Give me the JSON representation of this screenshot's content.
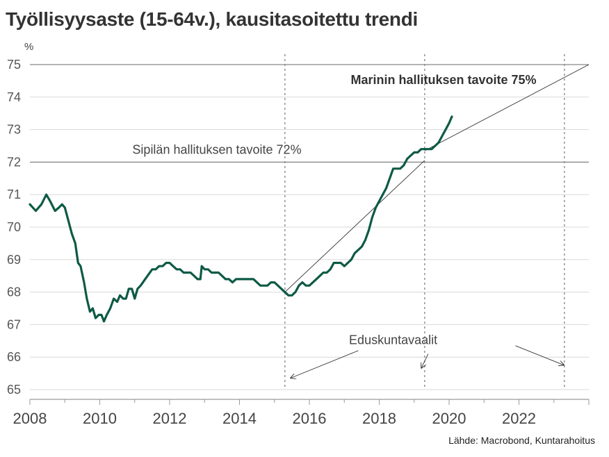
{
  "chart_data": {
    "type": "line",
    "title": "Työllisyysaste (15-64v.), kausitasoitettu trendi",
    "ylabel": "%",
    "xlabel": "",
    "xlim": [
      2008,
      2024
    ],
    "ylim": [
      65,
      75
    ],
    "x_ticks": [
      "2008",
      "2010",
      "2012",
      "2014",
      "2016",
      "2018",
      "2020",
      "2022"
    ],
    "y_ticks": [
      "65",
      "66",
      "67",
      "68",
      "69",
      "70",
      "71",
      "72",
      "73",
      "74",
      "75"
    ],
    "grid": "horizontal",
    "series": [
      {
        "color": "#0d5a45",
        "x": [
          2008.0,
          2008.17,
          2008.33,
          2008.47,
          2008.58,
          2008.72,
          2008.83,
          2008.92,
          2009.0,
          2009.1,
          2009.2,
          2009.3,
          2009.38,
          2009.45,
          2009.55,
          2009.63,
          2009.72,
          2009.8,
          2009.88,
          2009.97,
          2010.05,
          2010.12,
          2010.2,
          2010.3,
          2010.4,
          2010.5,
          2010.58,
          2010.67,
          2010.75,
          2010.83,
          2010.92,
          2011.0,
          2011.08,
          2011.17,
          2011.3,
          2011.5,
          2011.6,
          2011.7,
          2011.8,
          2011.9,
          2012.0,
          2012.1,
          2012.2,
          2012.3,
          2012.4,
          2012.5,
          2012.6,
          2012.7,
          2012.8,
          2012.88,
          2012.92,
          2013.0,
          2013.1,
          2013.2,
          2013.3,
          2013.4,
          2013.5,
          2013.6,
          2013.7,
          2013.8,
          2013.9,
          2014.0,
          2014.2,
          2014.4,
          2014.5,
          2014.6,
          2014.7,
          2014.8,
          2014.9,
          2015.0,
          2015.1,
          2015.2,
          2015.3,
          2015.4,
          2015.5,
          2015.6,
          2015.7,
          2015.8,
          2015.9,
          2016.0,
          2016.1,
          2016.2,
          2016.3,
          2016.4,
          2016.5,
          2016.6,
          2016.7,
          2016.8,
          2016.9,
          2017.0,
          2017.1,
          2017.2,
          2017.3,
          2017.4,
          2017.5,
          2017.6,
          2017.7,
          2017.8,
          2017.9,
          2018.0,
          2018.1,
          2018.2,
          2018.3,
          2018.4,
          2018.5,
          2018.6,
          2018.7,
          2018.8,
          2018.9,
          2019.0,
          2019.1,
          2019.2,
          2019.3,
          2019.4,
          2019.5,
          2019.6,
          2019.7,
          2019.8,
          2019.9,
          2020.0,
          2020.08
        ],
        "values": [
          70.7,
          70.5,
          70.7,
          71.0,
          70.8,
          70.5,
          70.6,
          70.7,
          70.6,
          70.2,
          69.8,
          69.5,
          68.9,
          68.8,
          68.3,
          67.8,
          67.4,
          67.5,
          67.2,
          67.3,
          67.3,
          67.1,
          67.3,
          67.5,
          67.8,
          67.7,
          67.9,
          67.8,
          67.8,
          68.1,
          68.1,
          67.8,
          68.1,
          68.2,
          68.4,
          68.7,
          68.7,
          68.8,
          68.8,
          68.9,
          68.9,
          68.8,
          68.7,
          68.7,
          68.6,
          68.6,
          68.6,
          68.5,
          68.4,
          68.4,
          68.8,
          68.7,
          68.7,
          68.6,
          68.6,
          68.6,
          68.5,
          68.4,
          68.4,
          68.3,
          68.4,
          68.4,
          68.4,
          68.4,
          68.3,
          68.2,
          68.2,
          68.2,
          68.3,
          68.3,
          68.2,
          68.1,
          68.0,
          67.9,
          67.9,
          68.0,
          68.2,
          68.3,
          68.2,
          68.2,
          68.3,
          68.4,
          68.5,
          68.6,
          68.6,
          68.7,
          68.9,
          68.9,
          68.9,
          68.8,
          68.9,
          69.0,
          69.2,
          69.3,
          69.4,
          69.6,
          69.9,
          70.3,
          70.6,
          70.8,
          71.0,
          71.2,
          71.5,
          71.8,
          71.8,
          71.8,
          71.9,
          72.1,
          72.2,
          72.3,
          72.3,
          72.4,
          72.4,
          72.4,
          72.4,
          72.5,
          72.6,
          72.8,
          73.0,
          73.2,
          73.4
        ]
      }
    ],
    "hlines": [
      {
        "y": 75,
        "label": "Marinin hallituksen tavoite 75%",
        "bold": true
      },
      {
        "y": 72,
        "label": "Sipilän hallituksen tavoite 72%",
        "bold": false
      }
    ],
    "vlines": [
      2015.3,
      2019.3,
      2023.3
    ],
    "trendlines": [
      {
        "x": [
          2015.3,
          2019.3
        ],
        "y": [
          68.0,
          72.05
        ]
      },
      {
        "x": [
          2019.3,
          2024.0
        ],
        "y": [
          72.35,
          75.0
        ]
      }
    ],
    "annotation": {
      "text": "Eduskuntavaalit",
      "x": 2018.4,
      "y": 66.4,
      "arrows": [
        {
          "from": [
            2017.4,
            66.2
          ],
          "to": [
            2015.45,
            65.35
          ]
        },
        {
          "from": [
            2019.4,
            66.1
          ],
          "to": [
            2019.2,
            65.65
          ]
        },
        {
          "from": [
            2021.9,
            66.35
          ],
          "to": [
            2023.3,
            65.75
          ]
        }
      ]
    },
    "source": "Lähde: Macrobond, Kuntarahoitus"
  }
}
